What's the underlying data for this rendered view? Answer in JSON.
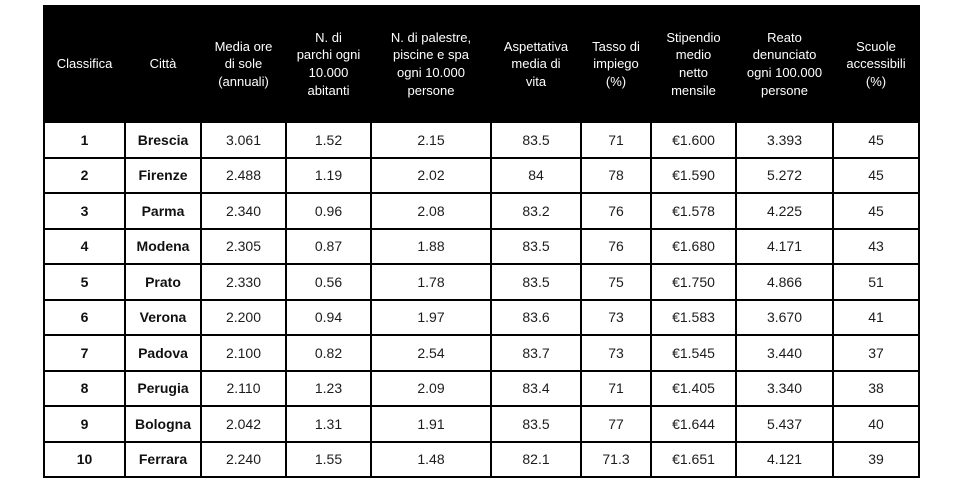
{
  "colors": {
    "header_bg": "#000000",
    "header_text": "#ffffff",
    "border": "#000000",
    "cell_text": "#1c1c1c",
    "page_bg": "#ffffff"
  },
  "chart_data": {
    "type": "table",
    "title": "",
    "columns": [
      "Classifica",
      "Città",
      "Media ore di sole (annuali)",
      "N. di parchi ogni 10.000 abitanti",
      "N. di palestre, piscine e spa ogni 10.000 persone",
      "Aspettativa media di vita",
      "Tasso di impiego (%)",
      "Stipendio medio netto mensile",
      "Reato denunciato ogni 100.000 persone",
      "Scuole accessibili (%)"
    ],
    "rows": [
      [
        "1",
        "Brescia",
        "3.061",
        "1.52",
        "2.15",
        "83.5",
        "71",
        "€1.600",
        "3.393",
        "45"
      ],
      [
        "2",
        "Firenze",
        "2.488",
        "1.19",
        "2.02",
        "84",
        "78",
        "€1.590",
        "5.272",
        "45"
      ],
      [
        "3",
        "Parma",
        "2.340",
        "0.96",
        "2.08",
        "83.2",
        "76",
        "€1.578",
        "4.225",
        "45"
      ],
      [
        "4",
        "Modena",
        "2.305",
        "0.87",
        "1.88",
        "83.5",
        "76",
        "€1.680",
        "4.171",
        "43"
      ],
      [
        "5",
        "Prato",
        "2.330",
        "0.56",
        "1.78",
        "83.5",
        "75",
        "€1.750",
        "4.866",
        "51"
      ],
      [
        "6",
        "Verona",
        "2.200",
        "0.94",
        "1.97",
        "83.6",
        "73",
        "€1.583",
        "3.670",
        "41"
      ],
      [
        "7",
        "Padova",
        "2.100",
        "0.82",
        "2.54",
        "83.7",
        "73",
        "€1.545",
        "3.440",
        "37"
      ],
      [
        "8",
        "Perugia",
        "2.110",
        "1.23",
        "2.09",
        "83.4",
        "71",
        "€1.405",
        "3.340",
        "38"
      ],
      [
        "9",
        "Bologna",
        "2.042",
        "1.31",
        "1.91",
        "83.5",
        "77",
        "€1.644",
        "5.437",
        "40"
      ],
      [
        "10",
        "Ferrara",
        "2.240",
        "1.55",
        "1.48",
        "82.1",
        "71.3",
        "€1.651",
        "4.121",
        "39"
      ]
    ]
  }
}
